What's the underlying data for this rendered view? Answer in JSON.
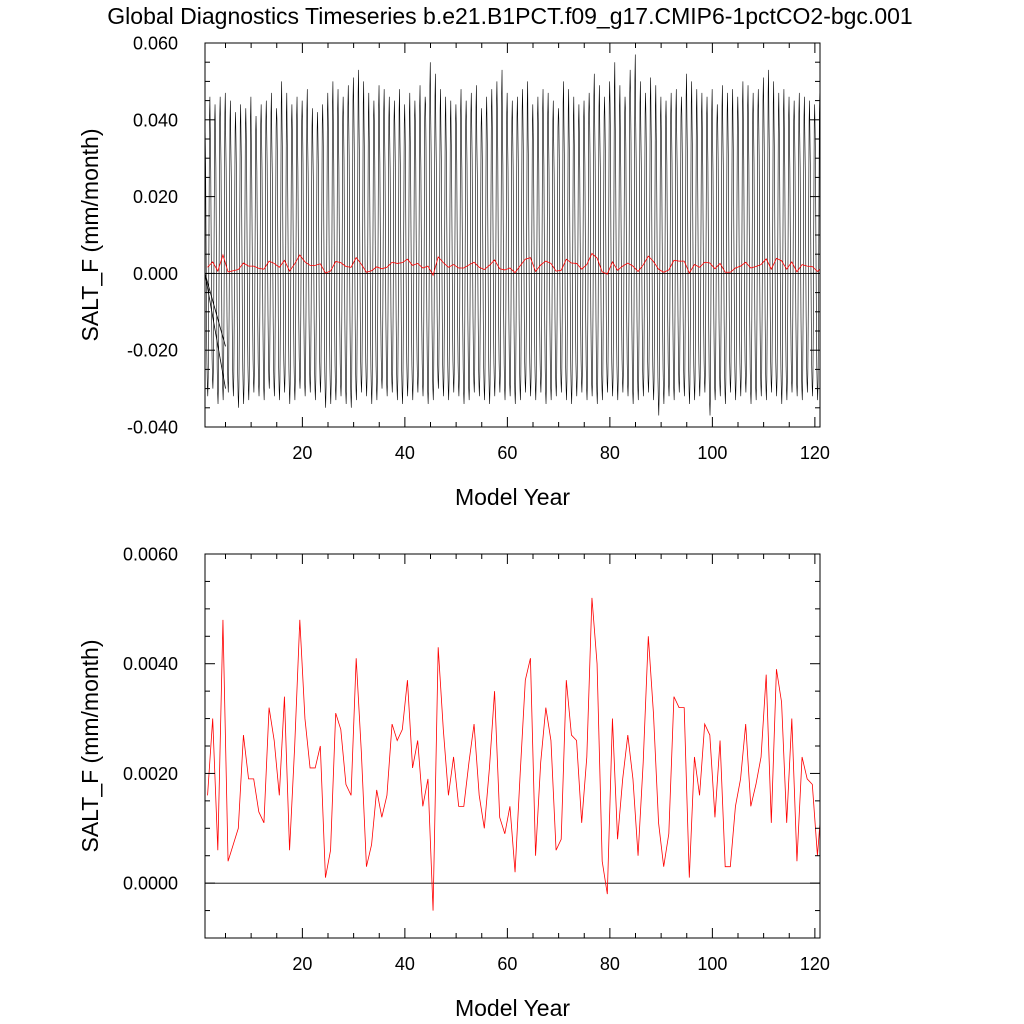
{
  "title": "Global Diagnostics Timeseries b.e21.B1PCT.f09_g17.CMIP6-1pctCO2-bgc.001",
  "colors": {
    "monthly": "#000000",
    "annual": "#ff0000",
    "zero_line": "#000000"
  },
  "chart_data": [
    {
      "type": "line",
      "xlabel": "Model Year",
      "ylabel": "SALT_F (mm/month)",
      "xlim": [
        1,
        121
      ],
      "ylim": [
        -0.04,
        0.06
      ],
      "xticks": [
        20,
        40,
        60,
        80,
        100,
        120
      ],
      "xtick_labels": [
        "20",
        "40",
        "60",
        "80",
        "100",
        "120"
      ],
      "yticks": [
        -0.04,
        -0.02,
        0.0,
        0.02,
        0.04,
        0.06
      ],
      "ytick_labels": [
        "-0.040",
        "-0.020",
        "0.000",
        "0.020",
        "0.040",
        "0.060"
      ],
      "reference_line_y": 0,
      "series": [
        {
          "kind": "monthly",
          "color": "#000000",
          "cycle_months": 12,
          "monthly_climatology": [
            0.028,
            0.021,
            0.006,
            -0.012,
            -0.024,
            -0.03,
            -0.033,
            -0.028,
            -0.01,
            0.012,
            0.031,
            0.035
          ],
          "annual_max_envelope": [
            0.046,
            0.044,
            0.046,
            0.047,
            0.045,
            0.042,
            0.044,
            0.043,
            0.046,
            0.041,
            0.044,
            0.045,
            0.047,
            0.043,
            0.05,
            0.047,
            0.044,
            0.046,
            0.045,
            0.048,
            0.043,
            0.042,
            0.044,
            0.047,
            0.05,
            0.048,
            0.046,
            0.049,
            0.051,
            0.053,
            0.05,
            0.047,
            0.045,
            0.049,
            0.048,
            0.046,
            0.045,
            0.048,
            0.044,
            0.047,
            0.045,
            0.049,
            0.046,
            0.055,
            0.052,
            0.048,
            0.046,
            0.045,
            0.044,
            0.048,
            0.045,
            0.047,
            0.049,
            0.043,
            0.046,
            0.048,
            0.05,
            0.053,
            0.047,
            0.045,
            0.046,
            0.048,
            0.05,
            0.044,
            0.046,
            0.048,
            0.047,
            0.045,
            0.043,
            0.05,
            0.048,
            0.046,
            0.044,
            0.045,
            0.047,
            0.052,
            0.049,
            0.046,
            0.05,
            0.055,
            0.049,
            0.046,
            0.053,
            0.057,
            0.05,
            0.047,
            0.051,
            0.049,
            0.046,
            0.045,
            0.047,
            0.048,
            0.046,
            0.052,
            0.05,
            0.048,
            0.047,
            0.046,
            0.048,
            0.044,
            0.049,
            0.047,
            0.048,
            0.046,
            0.05,
            0.049,
            0.047,
            0.048,
            0.051,
            0.053,
            0.05,
            0.047,
            0.048,
            0.046,
            0.045,
            0.047,
            0.046,
            0.045,
            0.044,
            0.047
          ],
          "annual_min_envelope": [
            -0.032,
            -0.03,
            -0.034,
            -0.033,
            -0.031,
            -0.032,
            -0.035,
            -0.034,
            -0.033,
            -0.031,
            -0.032,
            -0.033,
            -0.03,
            -0.032,
            -0.033,
            -0.031,
            -0.034,
            -0.033,
            -0.03,
            -0.032,
            -0.031,
            -0.033,
            -0.031,
            -0.035,
            -0.034,
            -0.033,
            -0.032,
            -0.034,
            -0.035,
            -0.033,
            -0.031,
            -0.032,
            -0.034,
            -0.033,
            -0.03,
            -0.032,
            -0.031,
            -0.033,
            -0.034,
            -0.032,
            -0.033,
            -0.031,
            -0.032,
            -0.034,
            -0.033,
            -0.03,
            -0.032,
            -0.033,
            -0.031,
            -0.032,
            -0.034,
            -0.033,
            -0.031,
            -0.032,
            -0.033,
            -0.034,
            -0.032,
            -0.031,
            -0.033,
            -0.032,
            -0.034,
            -0.033,
            -0.031,
            -0.032,
            -0.033,
            -0.031,
            -0.034,
            -0.033,
            -0.032,
            -0.031,
            -0.033,
            -0.034,
            -0.032,
            -0.031,
            -0.033,
            -0.032,
            -0.034,
            -0.033,
            -0.031,
            -0.032,
            -0.033,
            -0.031,
            -0.032,
            -0.034,
            -0.033,
            -0.032,
            -0.031,
            -0.033,
            -0.037,
            -0.034,
            -0.032,
            -0.033,
            -0.031,
            -0.032,
            -0.034,
            -0.033,
            -0.032,
            -0.031,
            -0.037,
            -0.033,
            -0.032,
            -0.034,
            -0.031,
            -0.033,
            -0.032,
            -0.031,
            -0.034,
            -0.033,
            -0.032,
            -0.033,
            -0.031,
            -0.032,
            -0.034,
            -0.033,
            -0.031,
            -0.032,
            -0.033,
            -0.031,
            -0.032,
            -0.033
          ],
          "annotation_lines": [
            {
              "x": [
                1,
                5
              ],
              "y": [
                0.0,
                -0.019
              ]
            },
            {
              "x": [
                1,
                5
              ],
              "y": [
                0.0,
                -0.03
              ]
            }
          ]
        },
        {
          "kind": "annual",
          "color": "#ff0000",
          "ref": "annual_means"
        }
      ]
    },
    {
      "type": "line",
      "xlabel": "Model Year",
      "ylabel": "SALT_F (mm/month)",
      "xlim": [
        1,
        121
      ],
      "ylim": [
        -0.001,
        0.006
      ],
      "xticks": [
        20,
        40,
        60,
        80,
        100,
        120
      ],
      "xtick_labels": [
        "20",
        "40",
        "60",
        "80",
        "100",
        "120"
      ],
      "yticks": [
        0.0,
        0.002,
        0.004,
        0.006
      ],
      "ytick_labels": [
        "0.0000",
        "0.0020",
        "0.0040",
        "0.0060"
      ],
      "reference_line_y": 0,
      "series": [
        {
          "kind": "annual",
          "color": "#ff0000",
          "ref": "annual_means"
        }
      ]
    }
  ],
  "annual_means": [
    0.0016,
    0.003,
    0.0006,
    0.0048,
    0.0004,
    0.0007,
    0.001,
    0.0027,
    0.0019,
    0.0019,
    0.0013,
    0.0011,
    0.0032,
    0.0026,
    0.0016,
    0.0034,
    0.0006,
    0.0025,
    0.0048,
    0.003,
    0.0021,
    0.0021,
    0.0025,
    0.0001,
    0.0006,
    0.0031,
    0.0028,
    0.0018,
    0.0016,
    0.0041,
    0.0024,
    0.0003,
    0.0007,
    0.0017,
    0.0012,
    0.0016,
    0.0029,
    0.0026,
    0.0028,
    0.0037,
    0.0021,
    0.0026,
    0.0014,
    0.0019,
    -0.0005,
    0.0043,
    0.0028,
    0.0016,
    0.0023,
    0.0014,
    0.0014,
    0.0022,
    0.0029,
    0.0016,
    0.001,
    0.0021,
    0.0035,
    0.0012,
    0.0009,
    0.0014,
    0.0002,
    0.002,
    0.0037,
    0.0041,
    0.0005,
    0.0022,
    0.0032,
    0.0026,
    0.0006,
    0.0008,
    0.0037,
    0.0027,
    0.0026,
    0.0011,
    0.0023,
    0.0052,
    0.004,
    0.0004,
    -0.0002,
    0.003,
    0.0008,
    0.0019,
    0.0027,
    0.0019,
    0.0005,
    0.0022,
    0.0045,
    0.0031,
    0.0011,
    0.0003,
    0.0009,
    0.0034,
    0.0032,
    0.0032,
    0.0001,
    0.0023,
    0.0016,
    0.0029,
    0.0027,
    0.0012,
    0.0026,
    0.0003,
    0.0003,
    0.0014,
    0.0019,
    0.0029,
    0.0014,
    0.0018,
    0.0023,
    0.0038,
    0.0011,
    0.0039,
    0.0033,
    0.0011,
    0.003,
    0.0004,
    0.0023,
    0.0019,
    0.0018,
    0.0005,
    0.0017,
    0.001
  ]
}
